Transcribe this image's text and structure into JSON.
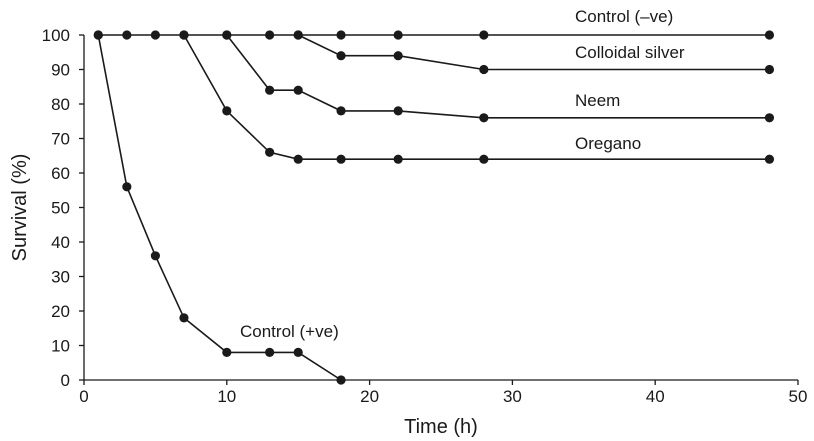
{
  "chart_data": {
    "type": "line",
    "title": "",
    "xlabel": "Time (h)",
    "ylabel": "Survival (%)",
    "xlim": [
      0,
      50
    ],
    "ylim": [
      0,
      100
    ],
    "x_ticks": [
      0,
      10,
      20,
      30,
      40,
      50
    ],
    "y_ticks": [
      0,
      10,
      20,
      30,
      40,
      50,
      60,
      70,
      80,
      90,
      100
    ],
    "grid": false,
    "legend": "none (series labeled directly on chart)",
    "line_color": "#1a1a1a",
    "marker": "filled-circle",
    "series": [
      {
        "name": "Control (–ve)",
        "x": [
          1,
          3,
          5,
          7,
          10,
          13,
          15,
          18,
          22,
          28,
          48
        ],
        "y": [
          100,
          100,
          100,
          100,
          100,
          100,
          100,
          100,
          100,
          100,
          100
        ]
      },
      {
        "name": "Colloidal silver",
        "x": [
          15,
          18,
          22,
          28,
          48
        ],
        "y": [
          100,
          94,
          94,
          90,
          90
        ]
      },
      {
        "name": "Neem",
        "x": [
          10,
          13,
          15,
          18,
          22,
          28,
          48
        ],
        "y": [
          100,
          84,
          84,
          78,
          78,
          76,
          76
        ]
      },
      {
        "name": "Oregano",
        "x": [
          7,
          10,
          13,
          15,
          18,
          22,
          28,
          48
        ],
        "y": [
          100,
          78,
          66,
          64,
          64,
          64,
          64,
          64
        ]
      },
      {
        "name": "Control (+ve)",
        "x": [
          1,
          3,
          5,
          7,
          10,
          13,
          15,
          18
        ],
        "y": [
          100,
          56,
          36,
          18,
          8,
          8,
          8,
          0
        ]
      }
    ]
  }
}
